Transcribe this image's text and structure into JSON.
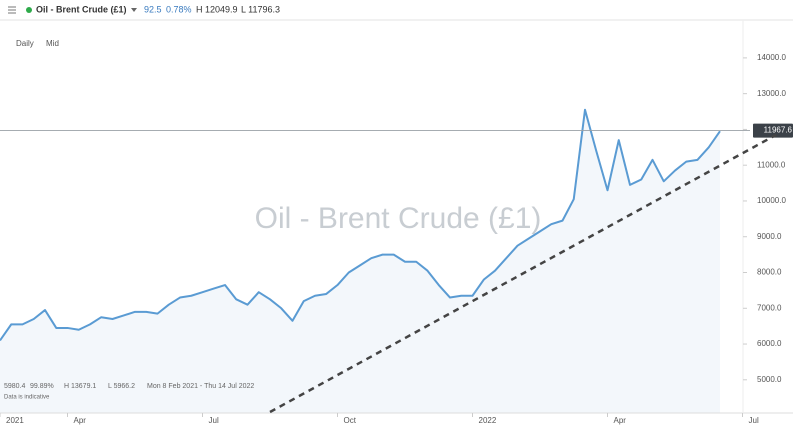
{
  "header": {
    "title": "Oil - Brent Crude (£1)",
    "change": "92.5",
    "change_pct": "0.78%",
    "high": "H 12049.9",
    "low": "L 11796.3"
  },
  "toolbar": {
    "interval": "Daily",
    "price_type": "Mid"
  },
  "footer": {
    "last": "5980.4",
    "pct": "99.89%",
    "high": "H 13679.1",
    "low": "L 5966.2",
    "range": "Mon 8 Feb 2021 - Thu 14 Jul 2022",
    "note": "Data is indicative"
  },
  "chart_data": {
    "type": "area",
    "watermark": "Oil - Brent Crude (£1)",
    "categories": [
      "2021",
      null,
      null,
      null,
      null,
      null,
      "Apr",
      null,
      null,
      null,
      null,
      null,
      null,
      null,
      null,
      null,
      null,
      null,
      "Jul",
      null,
      null,
      null,
      null,
      null,
      null,
      null,
      null,
      null,
      null,
      null,
      "Oct",
      null,
      null,
      null,
      null,
      null,
      null,
      null,
      null,
      null,
      null,
      null,
      "2022",
      null,
      null,
      null,
      null,
      null,
      null,
      null,
      null,
      null,
      null,
      null,
      "Apr",
      null,
      null,
      null,
      null,
      null,
      null,
      null,
      null,
      null,
      null,
      null,
      "Jul"
    ],
    "series": [
      {
        "name": "Oil - Brent Crude (£1)",
        "color": "#5a9bd3",
        "values": [
          6100,
          6550,
          6550,
          6700,
          6950,
          6450,
          6450,
          6400,
          6550,
          6750,
          6700,
          6800,
          6900,
          6900,
          6850,
          7100,
          7300,
          7350,
          7450,
          7550,
          7650,
          7250,
          7100,
          7450,
          7250,
          7000,
          6650,
          7200,
          7350,
          7400,
          7650,
          8000,
          8200,
          8400,
          8500,
          8500,
          8300,
          8300,
          8050,
          7650,
          7300,
          7350,
          7350,
          7800,
          8050,
          8400,
          8750,
          8950,
          9150,
          9350,
          9450,
          10050,
          12550,
          11400,
          10300,
          11700,
          10450,
          10600,
          11150,
          10550,
          10850,
          11100,
          11150,
          11500,
          11950,
          null,
          null
        ]
      }
    ],
    "price_line": {
      "value": 11967.6,
      "label": "11967.6"
    },
    "trendline": {
      "x": [
        24,
        69
      ],
      "values": [
        4100,
        11850
      ]
    },
    "ylim": [
      4100,
      14500
    ],
    "yticks": [
      {
        "value": 5000,
        "label": "5000.0"
      },
      {
        "value": 6000,
        "label": "6000.0"
      },
      {
        "value": 7000,
        "label": "7000.0"
      },
      {
        "value": 8000,
        "label": "8000.0"
      },
      {
        "value": 9000,
        "label": "9000.0"
      },
      {
        "value": 10000,
        "label": "10000.0"
      },
      {
        "value": 11000,
        "label": "11000.0"
      },
      {
        "value": 12000,
        "label": "12000.0"
      },
      {
        "value": 13000,
        "label": "13000.0"
      },
      {
        "value": 14000,
        "label": "14000.0"
      }
    ],
    "grid": false
  }
}
